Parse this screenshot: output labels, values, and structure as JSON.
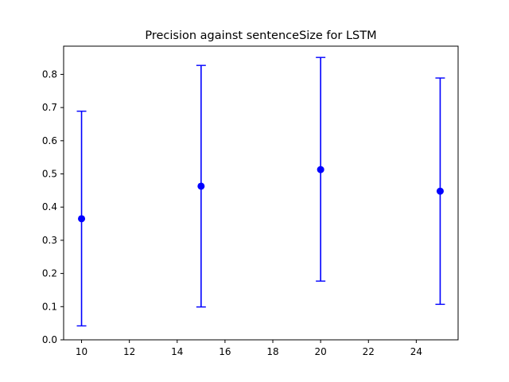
{
  "chart_data": {
    "type": "scatter",
    "title": "Precision against sentenceSize for LSTM",
    "xlabel": "",
    "ylabel": "",
    "xlim": [
      9.25,
      25.75
    ],
    "ylim": [
      0.0,
      0.885
    ],
    "xticks": [
      10,
      12,
      14,
      16,
      18,
      20,
      22,
      24
    ],
    "yticks": [
      0.0,
      0.1,
      0.2,
      0.3,
      0.4,
      0.5,
      0.6,
      0.7,
      0.8
    ],
    "grid": false,
    "legend": "none",
    "series": [
      {
        "x": [
          10,
          15,
          20,
          25
        ],
        "y": [
          0.365,
          0.463,
          0.513,
          0.448
        ],
        "yerr_low": [
          0.042,
          0.099,
          0.177,
          0.107
        ],
        "yerr_high": [
          0.689,
          0.827,
          0.851,
          0.789
        ],
        "color": "#0000ff",
        "marker": "circle"
      }
    ]
  }
}
